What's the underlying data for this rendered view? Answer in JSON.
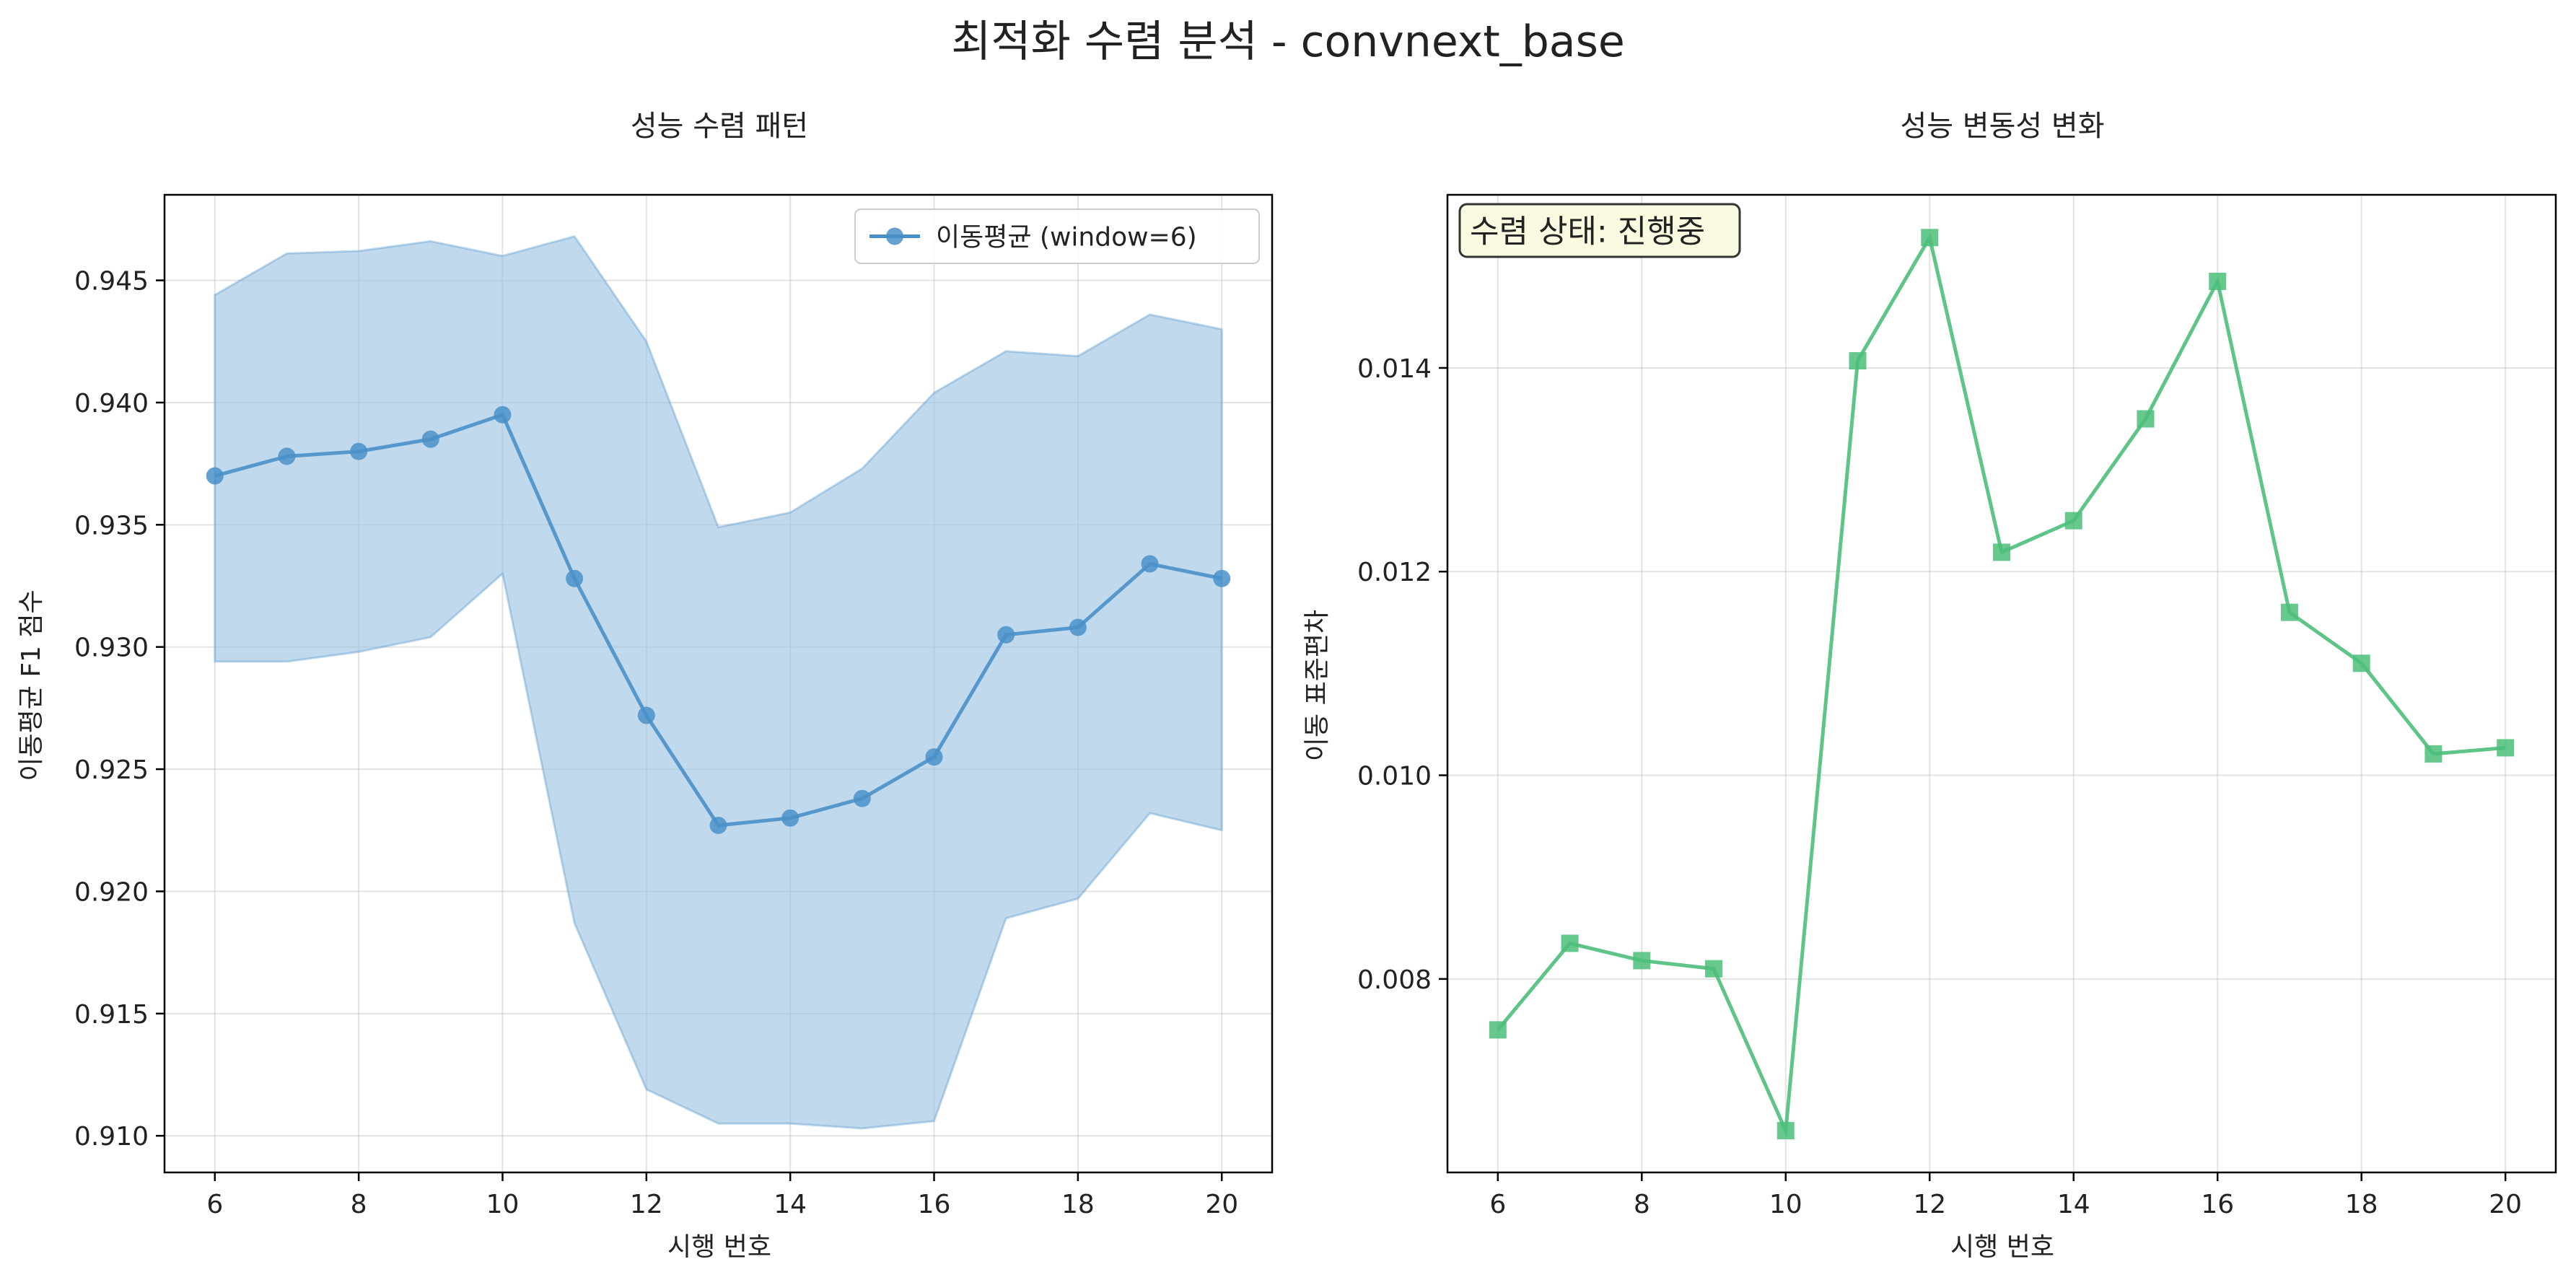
{
  "suptitle": "최적화 수렴 분석 - convnext_base",
  "colors": {
    "ma": "#4a90c8",
    "band": "#9ec5e4",
    "std": "#4cbe7a",
    "status_bg": "#fafae0"
  },
  "chart_data": [
    {
      "type": "line",
      "title": "성능 수렴 패턴",
      "xlabel": "시행 번호",
      "ylabel": "이동평균 F1 점수",
      "xlim": [
        5.3,
        20.7
      ],
      "ylim": [
        0.9085,
        0.9485
      ],
      "xticks": [
        6,
        8,
        10,
        12,
        14,
        16,
        18,
        20
      ],
      "yticks": [
        0.91,
        0.915,
        0.92,
        0.925,
        0.93,
        0.935,
        0.94,
        0.945
      ],
      "ytick_labels": [
        "0.910",
        "0.915",
        "0.920",
        "0.925",
        "0.930",
        "0.935",
        "0.940",
        "0.945"
      ],
      "grid": true,
      "legend_position": "top-right",
      "x": [
        6,
        7,
        8,
        9,
        10,
        11,
        12,
        13,
        14,
        15,
        16,
        17,
        18,
        19,
        20
      ],
      "series": [
        {
          "name": "이동평균 (window=6)",
          "marker": "circle",
          "values": [
            0.937,
            0.9378,
            0.938,
            0.9385,
            0.9395,
            0.9328,
            0.9272,
            0.9227,
            0.923,
            0.9238,
            0.9255,
            0.9305,
            0.9308,
            0.9334,
            0.9328
          ]
        }
      ],
      "band": {
        "upper": [
          0.9444,
          0.9461,
          0.9462,
          0.9466,
          0.946,
          0.9468,
          0.9425,
          0.9349,
          0.9355,
          0.9373,
          0.9404,
          0.9421,
          0.9419,
          0.9436,
          0.943
        ],
        "lower": [
          0.9294,
          0.9294,
          0.9298,
          0.9304,
          0.933,
          0.9187,
          0.9119,
          0.9105,
          0.9105,
          0.9103,
          0.9106,
          0.9189,
          0.9197,
          0.9232,
          0.9225
        ]
      }
    },
    {
      "type": "line",
      "title": "성능 변동성 변화",
      "xlabel": "시행 번호",
      "ylabel": "이동 표준편차",
      "xlim": [
        5.3,
        20.7
      ],
      "ylim": [
        0.0061,
        0.0157
      ],
      "xticks": [
        6,
        8,
        10,
        12,
        14,
        16,
        18,
        20
      ],
      "yticks": [
        0.008,
        0.01,
        0.012,
        0.014
      ],
      "ytick_labels": [
        "0.008",
        "0.010",
        "0.012",
        "0.014"
      ],
      "grid": true,
      "annotation": "수렴 상태: 진행중",
      "x": [
        6,
        7,
        8,
        9,
        10,
        11,
        12,
        13,
        14,
        15,
        16,
        17,
        18,
        19,
        20
      ],
      "series": [
        {
          "marker": "square",
          "values": [
            0.0075,
            0.00835,
            0.00818,
            0.0081,
            0.00651,
            0.01407,
            0.01528,
            0.01219,
            0.0125,
            0.0135,
            0.01485,
            0.0116,
            0.0111,
            0.01021,
            0.01027
          ]
        }
      ]
    }
  ]
}
